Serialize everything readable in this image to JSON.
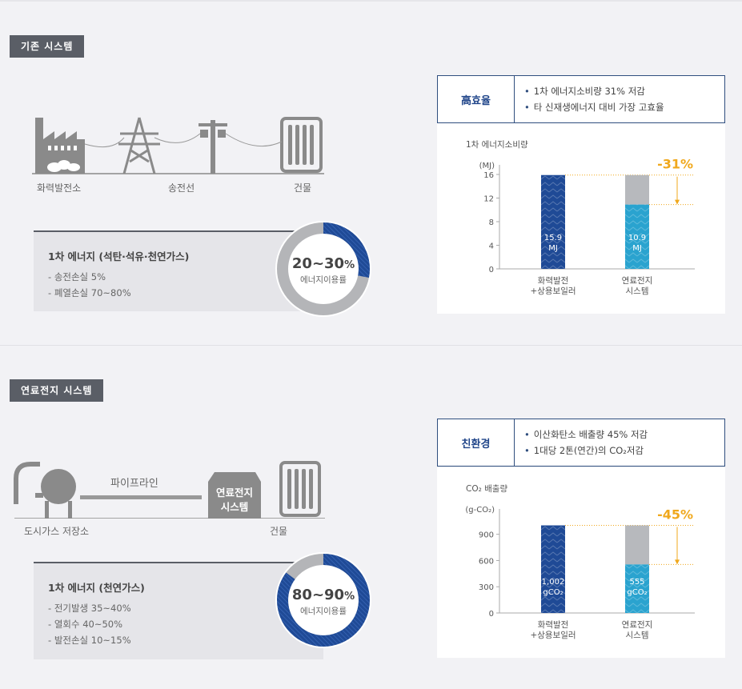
{
  "top": {
    "tag": "기존 시스템",
    "labels": {
      "plant": "화력발전소",
      "line": "송전선",
      "building": "건물"
    },
    "energy": {
      "title": "1차 에너지 (석탄·석유·천연가스)",
      "items": [
        "송전손실 5%",
        "폐열손실 70~80%"
      ]
    },
    "donut": {
      "value": "20~30",
      "unit": "%",
      "label": "에너지이용률",
      "fill_fraction": 0.28
    },
    "info": {
      "head": "高효율",
      "items": [
        "1차 에너지소비량 31% 저감",
        "타 신재생에너지 대비 가장 고효율"
      ]
    },
    "chart_data": {
      "type": "bar",
      "title": "1차 에너지소비량",
      "unit_label": "(MJ)",
      "ylim": [
        0,
        16
      ],
      "yticks": [
        0,
        4,
        8,
        12,
        16
      ],
      "categories": [
        "화력발전\n+상용보일러",
        "연료전지\n시스템"
      ],
      "values": [
        15.9,
        10.9
      ],
      "value_labels": [
        "15.9\nMJ",
        "10.9\nMJ"
      ],
      "reduction_label": "-31%",
      "colors": {
        "bar1": "#1f4a96",
        "bar2": "#2aa3cf",
        "reduced": "#b7b9bd",
        "accent": "#f0a81c"
      }
    }
  },
  "bottom": {
    "tag": "연료전지 시스템",
    "labels": {
      "storage": "도시가스 저장소",
      "pipe": "파이프라인",
      "fuelcell": "연료전지\n시스템",
      "building": "건물"
    },
    "energy": {
      "title": "1차 에너지 (천연가스)",
      "items": [
        "전기발생 35~40%",
        "열회수 40~50%",
        "발전손실 10~15%"
      ]
    },
    "donut": {
      "value": "80~90",
      "unit": "%",
      "label": "에너지이용률",
      "fill_fraction": 0.85
    },
    "info": {
      "head": "친환경",
      "items": [
        "이산화탄소 배출량 45% 저감",
        "1대당 2톤(연간)의 CO₂저감"
      ]
    },
    "chart_data": {
      "type": "bar",
      "title": "CO₂ 배출량",
      "unit_label": "(g-CO₂)",
      "ylim": [
        0,
        1080
      ],
      "yticks": [
        0,
        300,
        600,
        900
      ],
      "categories": [
        "화력발전\n+상용보일러",
        "연료전지\n시스템"
      ],
      "values": [
        1002,
        555
      ],
      "value_labels": [
        "1,002\ngCO₂",
        "555\ngCO₂"
      ],
      "reduction_label": "-45%",
      "colors": {
        "bar1": "#1f4a96",
        "bar2": "#2aa3cf",
        "reduced": "#b7b9bd",
        "accent": "#f0a81c"
      }
    }
  }
}
